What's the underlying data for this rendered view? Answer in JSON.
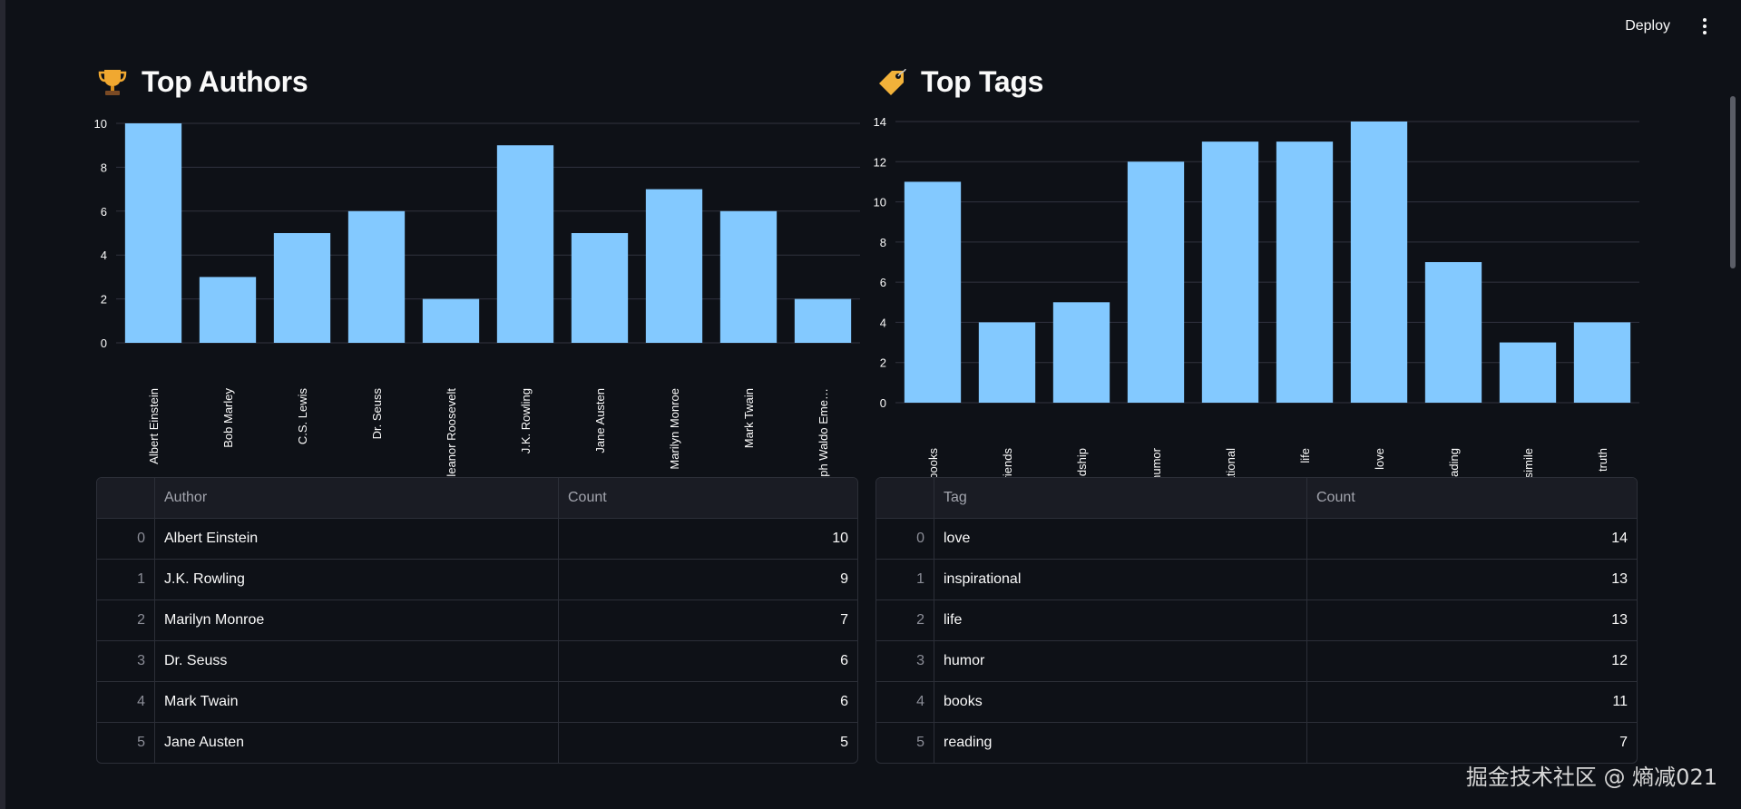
{
  "toolbar": {
    "deploy_label": "Deploy"
  },
  "authors": {
    "title": "Top Authors",
    "table": {
      "headers": {
        "index": "",
        "name": "Author",
        "count": "Count"
      },
      "rows": [
        {
          "index": "0",
          "name": "Albert Einstein",
          "count": "10"
        },
        {
          "index": "1",
          "name": "J.K. Rowling",
          "count": "9"
        },
        {
          "index": "2",
          "name": "Marilyn Monroe",
          "count": "7"
        },
        {
          "index": "3",
          "name": "Dr. Seuss",
          "count": "6"
        },
        {
          "index": "4",
          "name": "Mark Twain",
          "count": "6"
        },
        {
          "index": "5",
          "name": "Jane Austen",
          "count": "5"
        }
      ]
    }
  },
  "tags": {
    "title": "Top Tags",
    "table": {
      "headers": {
        "index": "",
        "name": "Tag",
        "count": "Count"
      },
      "rows": [
        {
          "index": "0",
          "name": "love",
          "count": "14"
        },
        {
          "index": "1",
          "name": "inspirational",
          "count": "13"
        },
        {
          "index": "2",
          "name": "life",
          "count": "13"
        },
        {
          "index": "3",
          "name": "humor",
          "count": "12"
        },
        {
          "index": "4",
          "name": "books",
          "count": "11"
        },
        {
          "index": "5",
          "name": "reading",
          "count": "7"
        }
      ]
    }
  },
  "watermark": "掘金技术社区 @ 熵减021",
  "colors": {
    "background": "#0e1117",
    "bar": "#83c9ff",
    "grid": "#31333f"
  },
  "chart_data": [
    {
      "type": "bar",
      "title": "Top Authors",
      "categories": [
        "Albert Einstein",
        "Bob Marley",
        "C.S. Lewis",
        "Dr. Seuss",
        "Eleanor Roosevelt",
        "J.K. Rowling",
        "Jane Austen",
        "Marilyn Monroe",
        "Mark Twain",
        "Ralph Waldo Eme…"
      ],
      "values": [
        10,
        3,
        5,
        6,
        2,
        9,
        5,
        7,
        6,
        2
      ],
      "yticks": [
        0,
        2,
        4,
        6,
        8,
        10
      ],
      "ylim": [
        0,
        10
      ],
      "xlabel": "",
      "ylabel": ""
    },
    {
      "type": "bar",
      "title": "Top Tags",
      "categories": [
        "books",
        "friends",
        "friendship",
        "humor",
        "inspirational",
        "life",
        "love",
        "reading",
        "simile",
        "truth"
      ],
      "values": [
        11,
        4,
        5,
        12,
        13,
        13,
        14,
        7,
        3,
        4
      ],
      "yticks": [
        0,
        2,
        4,
        6,
        8,
        10,
        12,
        14
      ],
      "ylim": [
        0,
        14
      ],
      "xlabel": "",
      "ylabel": ""
    }
  ]
}
